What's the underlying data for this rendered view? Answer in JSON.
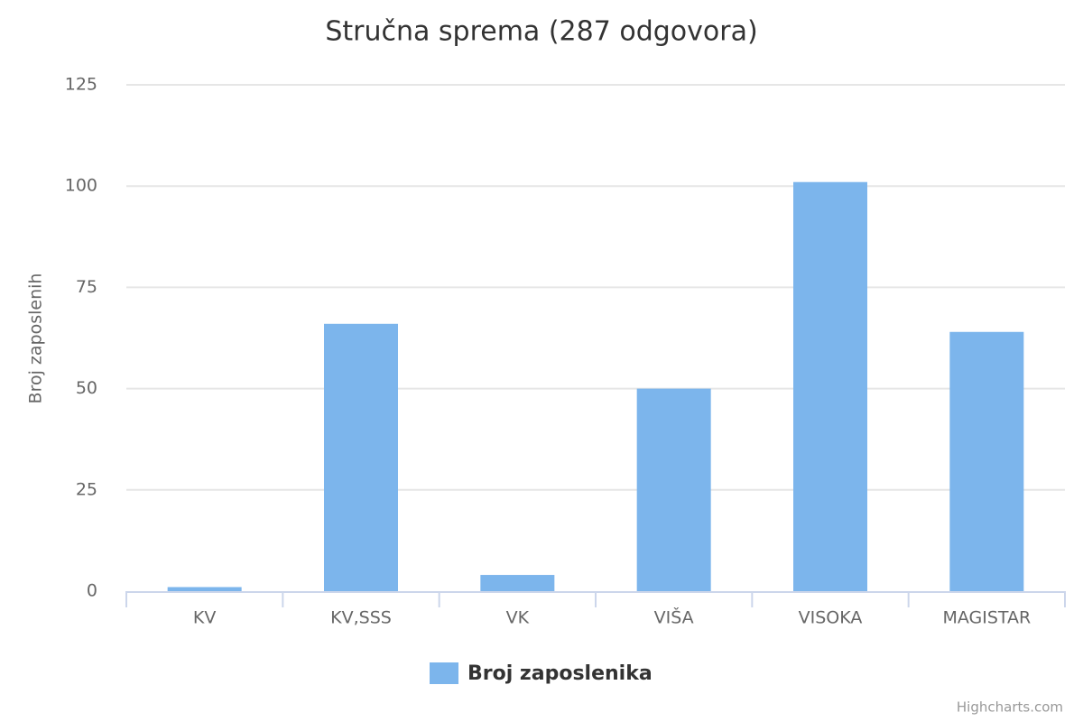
{
  "chart_data": {
    "type": "bar",
    "title": "Stručna sprema (287 odgovora)",
    "y_label": "Broj zaposlenih",
    "categories": [
      "KV",
      "KV,SSS",
      "VK",
      "VIŠA",
      "VISOKA",
      "MAGISTAR"
    ],
    "series": [
      {
        "name": "Broj zaposlenika",
        "color": "#7cb5ec",
        "values": [
          1,
          66,
          4,
          50,
          101,
          64
        ]
      }
    ],
    "ylim": [
      0,
      125
    ],
    "yticks": [
      0,
      25,
      50,
      75,
      100,
      125
    ],
    "grid": true,
    "legend": "bottom",
    "credits": "Highcharts.com"
  }
}
